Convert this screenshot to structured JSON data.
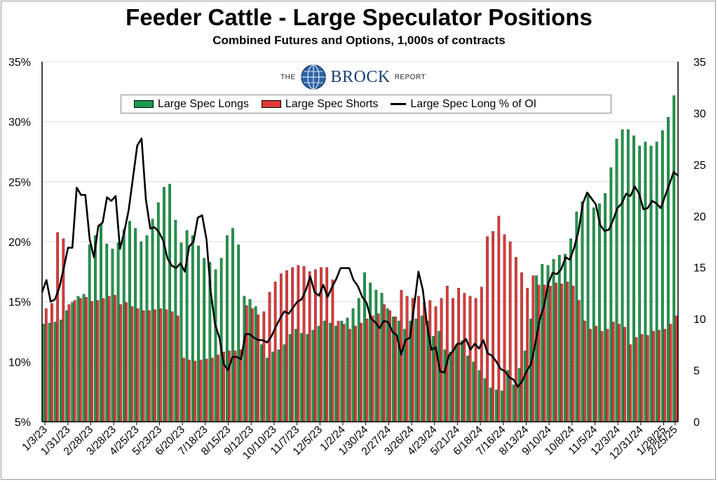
{
  "chart_data": {
    "type": "bar",
    "title": "Feeder Cattle - Large Speculator Positions",
    "subtitle": "Combined Futures and Options, 1,000s of contracts",
    "watermark": {
      "prefix": "THE",
      "name": "BROCK",
      "suffix": "REPORT"
    },
    "left_axis": {
      "ticks": [
        "5%",
        "10%",
        "15%",
        "20%",
        "25%",
        "30%",
        "35%"
      ],
      "ylim": [
        5,
        35
      ],
      "unit": "%"
    },
    "right_axis": {
      "ticks": [
        "0",
        "5",
        "10",
        "15",
        "20",
        "25",
        "30",
        "35"
      ],
      "ylim": [
        0,
        35
      ]
    },
    "x_tick_labels": [
      "1/3/23",
      "1/31/23",
      "2/28/23",
      "3/28/23",
      "4/25/23",
      "5/23/23",
      "6/20/23",
      "7/18/23",
      "8/15/23",
      "9/12/23",
      "10/10/23",
      "11/7/23",
      "12/5/23",
      "1/2/24",
      "1/30/24",
      "2/27/24",
      "3/26/24",
      "4/23/24",
      "5/21/24",
      "6/18/24",
      "7/16/24",
      "8/13/24",
      "9/10/24",
      "10/8/24",
      "11/5/24",
      "12/3/24",
      "12/31/24",
      "1/28/25",
      "2/25/25"
    ],
    "legend_placement": "top-center",
    "grid": true,
    "series": [
      {
        "name": "Large Spec Longs",
        "type": "bar",
        "axis": "right",
        "color": "#1a9a4a",
        "values": [
          9.5,
          9.6,
          9.7,
          9.9,
          10.8,
          11.6,
          12.2,
          12.4,
          17.2,
          18.1,
          19.2,
          17.3,
          16.8,
          17.4,
          18.7,
          19.5,
          18.8,
          17.5,
          18.1,
          19.7,
          21.3,
          22.8,
          23.1,
          19.6,
          17.4,
          18.6,
          18.1,
          17.1,
          15.9,
          15.5,
          14.8,
          15.9,
          18.1,
          18.8,
          17.2,
          12.2,
          11.9,
          11.2,
          7.5,
          6.2,
          6.8,
          7.0,
          7.5,
          8.5,
          9.0,
          8.6,
          8.5,
          8.9,
          9.3,
          9.8,
          9.6,
          9.3,
          9.8,
          10.1,
          11.0,
          12.0,
          14.5,
          13.5,
          12.8,
          12.5,
          11.0,
          10.2,
          9.8,
          9.0,
          9.8,
          10.0,
          10.3,
          9.8,
          8.3,
          8.8,
          7.0,
          6.8,
          7.5,
          7.9,
          6.4,
          5.8,
          5.0,
          4.2,
          3.3,
          3.1,
          3.0,
          5.0,
          3.6,
          5.2,
          6.9,
          10.0,
          14.2,
          15.3,
          15.2,
          15.8,
          16.2,
          16.3,
          17.8,
          20.4,
          21.4,
          22.0,
          20.8,
          21.2,
          22.2,
          24.7,
          27.5,
          28.4,
          28.4,
          27.8,
          26.8,
          27.2,
          26.8,
          27.2,
          28.3,
          29.6,
          31.7
        ]
      },
      {
        "name": "Large Spec Shorts",
        "type": "bar",
        "axis": "right",
        "color": "#e33838",
        "values": [
          11.0,
          11.5,
          18.4,
          17.8,
          11.4,
          11.8,
          12.0,
          12.1,
          11.7,
          11.8,
          12.0,
          12.2,
          12.3,
          11.4,
          11.6,
          11.2,
          11.0,
          10.8,
          10.8,
          10.9,
          11.0,
          10.9,
          10.7,
          10.3,
          6.2,
          6.0,
          5.9,
          6.0,
          6.1,
          6.2,
          6.5,
          6.8,
          6.9,
          6.9,
          7.0,
          11.3,
          11.0,
          10.4,
          10.7,
          12.6,
          13.6,
          14.4,
          14.7,
          15.0,
          15.2,
          15.1,
          14.6,
          14.8,
          15.0,
          15.0,
          13.8,
          9.8,
          9.5,
          9.0,
          9.3,
          9.6,
          10.0,
          10.3,
          10.5,
          11.4,
          10.8,
          10.2,
          12.8,
          12.2,
          12.0,
          12.2,
          11.6,
          11.8,
          11.2,
          12.0,
          13.2,
          12.0,
          13.0,
          12.5,
          12.2,
          12.0,
          13.1,
          18.0,
          18.5,
          20.0,
          18.2,
          17.5,
          16.0,
          14.5,
          13.0,
          14.2,
          13.3,
          13.3,
          13.2,
          13.5,
          13.4,
          13.6,
          13.2,
          11.8,
          9.8,
          9.0,
          9.3,
          8.8,
          9.0,
          9.7,
          9.5,
          9.2,
          7.5,
          8.2,
          8.5,
          8.4,
          8.8,
          8.9,
          9.0,
          9.5,
          10.3
        ]
      },
      {
        "name": "Large Spec Long % of OI",
        "type": "line",
        "axis": "left",
        "color": "#000000",
        "values": [
          15.8,
          16.8,
          15.0,
          15.2,
          16.2,
          17.8,
          19.5,
          19.5,
          24.5,
          23.9,
          23.9,
          20.2,
          18.7,
          21.3,
          21.6,
          23.7,
          23.4,
          23.8,
          19.4,
          20.8,
          22.6,
          25.3,
          28.0,
          28.6,
          23.5,
          21.1,
          21.2,
          20.8,
          20.1,
          18.6,
          18.0,
          17.8,
          18.2,
          17.5,
          19.6,
          20.0,
          22.0,
          22.2,
          20.2,
          15.8,
          13.1,
          12.0,
          9.8,
          9.3,
          10.4,
          10.4,
          10.2,
          12.3,
          12.3,
          12.0,
          11.8,
          11.8,
          11.6,
          12.1,
          12.9,
          13.6,
          14.2,
          14.0,
          14.5,
          15.0,
          15.2,
          16.0,
          17.1,
          15.8,
          15.5,
          16.4,
          15.4,
          16.2,
          16.9,
          17.8,
          17.8,
          17.8,
          16.8,
          16.3,
          15.4,
          14.9,
          13.6,
          13.3,
          12.8,
          13.4,
          13.3,
          12.5,
          12.2,
          10.6,
          11.8,
          12.0,
          14.6,
          17.5,
          16.0,
          13.0,
          11.0,
          11.2,
          9.2,
          9.1,
          10.5,
          10.9,
          11.5,
          11.5,
          11.9,
          11.0,
          11.5,
          11.1,
          11.8,
          10.7,
          10.5,
          10.0,
          9.4,
          9.2,
          8.7,
          8.5,
          7.9,
          8.4,
          9.2,
          9.8,
          11.5,
          13.5,
          14.6,
          16.5,
          17.4,
          17.3,
          17.7,
          18.7,
          18.5,
          19.5,
          20.9,
          23.2,
          24.1,
          23.6,
          23.1,
          21.4,
          20.9,
          21.0,
          21.8,
          22.8,
          23.2,
          24.0,
          23.8,
          24.6,
          24.0,
          22.7,
          22.8,
          23.4,
          23.2,
          22.8,
          23.8,
          24.8,
          25.8,
          25.5
        ]
      }
    ]
  }
}
